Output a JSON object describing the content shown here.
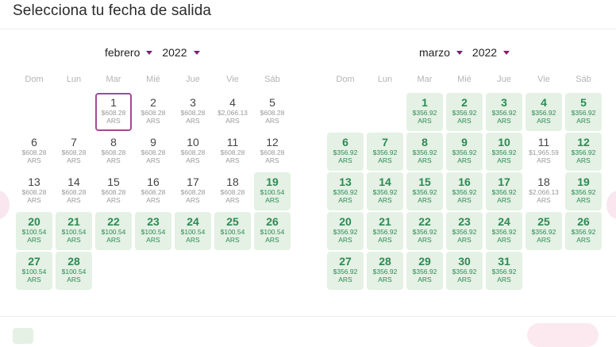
{
  "title": "Selecciona tu fecha de salida",
  "weekdays": [
    "Dom",
    "Lun",
    "Mar",
    "Mié",
    "Jue",
    "Vie",
    "Sáb"
  ],
  "colors": {
    "accent": "#8a1a6b",
    "cheap_bg": "#e4f1e4",
    "cheap_text": "#2c8a54",
    "selected_border": "#a14a95"
  },
  "icons": {
    "prev": "chevron-left-icon",
    "next": "chevron-right-icon",
    "dropdown": "caret-down-icon"
  },
  "months": [
    {
      "month_label": "febrero",
      "year_label": "2022",
      "start_weekday": 2,
      "days": [
        {
          "day": "1",
          "price": "$608.28",
          "currency": "ARS",
          "cheap": false,
          "selected": true
        },
        {
          "day": "2",
          "price": "$608.28",
          "currency": "ARS",
          "cheap": false
        },
        {
          "day": "3",
          "price": "$608.28",
          "currency": "ARS",
          "cheap": false
        },
        {
          "day": "4",
          "price": "$2,066.13",
          "currency": "ARS",
          "cheap": false
        },
        {
          "day": "5",
          "price": "$608.28",
          "currency": "ARS",
          "cheap": false
        },
        {
          "day": "6",
          "price": "$608.28",
          "currency": "ARS",
          "cheap": false
        },
        {
          "day": "7",
          "price": "$608.28",
          "currency": "ARS",
          "cheap": false
        },
        {
          "day": "8",
          "price": "$608.28",
          "currency": "ARS",
          "cheap": false
        },
        {
          "day": "9",
          "price": "$608.28",
          "currency": "ARS",
          "cheap": false
        },
        {
          "day": "10",
          "price": "$608.28",
          "currency": "ARS",
          "cheap": false
        },
        {
          "day": "11",
          "price": "$608.28",
          "currency": "ARS",
          "cheap": false
        },
        {
          "day": "12",
          "price": "$608.28",
          "currency": "ARS",
          "cheap": false
        },
        {
          "day": "13",
          "price": "$608.28",
          "currency": "ARS",
          "cheap": false
        },
        {
          "day": "14",
          "price": "$608.28",
          "currency": "ARS",
          "cheap": false
        },
        {
          "day": "15",
          "price": "$608.28",
          "currency": "ARS",
          "cheap": false
        },
        {
          "day": "16",
          "price": "$608.28",
          "currency": "ARS",
          "cheap": false
        },
        {
          "day": "17",
          "price": "$608.28",
          "currency": "ARS",
          "cheap": false
        },
        {
          "day": "18",
          "price": "$608.28",
          "currency": "ARS",
          "cheap": false
        },
        {
          "day": "19",
          "price": "$100.54",
          "currency": "ARS",
          "cheap": true
        },
        {
          "day": "20",
          "price": "$100.54",
          "currency": "ARS",
          "cheap": true
        },
        {
          "day": "21",
          "price": "$100.54",
          "currency": "ARS",
          "cheap": true
        },
        {
          "day": "22",
          "price": "$100.54",
          "currency": "ARS",
          "cheap": true
        },
        {
          "day": "23",
          "price": "$100.54",
          "currency": "ARS",
          "cheap": true
        },
        {
          "day": "24",
          "price": "$100.54",
          "currency": "ARS",
          "cheap": true
        },
        {
          "day": "25",
          "price": "$100.54",
          "currency": "ARS",
          "cheap": true
        },
        {
          "day": "26",
          "price": "$100.54",
          "currency": "ARS",
          "cheap": true
        },
        {
          "day": "27",
          "price": "$100.54",
          "currency": "ARS",
          "cheap": true
        },
        {
          "day": "28",
          "price": "$100.54",
          "currency": "ARS",
          "cheap": true
        }
      ]
    },
    {
      "month_label": "marzo",
      "year_label": "2022",
      "start_weekday": 2,
      "days": [
        {
          "day": "1",
          "price": "$356.92",
          "currency": "ARS",
          "cheap": true
        },
        {
          "day": "2",
          "price": "$356.92",
          "currency": "ARS",
          "cheap": true
        },
        {
          "day": "3",
          "price": "$356.92",
          "currency": "ARS",
          "cheap": true
        },
        {
          "day": "4",
          "price": "$356.92",
          "currency": "ARS",
          "cheap": true
        },
        {
          "day": "5",
          "price": "$356.92",
          "currency": "ARS",
          "cheap": true
        },
        {
          "day": "6",
          "price": "$356.92",
          "currency": "ARS",
          "cheap": true
        },
        {
          "day": "7",
          "price": "$356.92",
          "currency": "ARS",
          "cheap": true
        },
        {
          "day": "8",
          "price": "$356.92",
          "currency": "ARS",
          "cheap": true
        },
        {
          "day": "9",
          "price": "$356.92",
          "currency": "ARS",
          "cheap": true
        },
        {
          "day": "10",
          "price": "$356.92",
          "currency": "ARS",
          "cheap": true
        },
        {
          "day": "11",
          "price": "$1,965.59",
          "currency": "ARS",
          "cheap": false
        },
        {
          "day": "12",
          "price": "$356.92",
          "currency": "ARS",
          "cheap": true
        },
        {
          "day": "13",
          "price": "$356.92",
          "currency": "ARS",
          "cheap": true
        },
        {
          "day": "14",
          "price": "$356.92",
          "currency": "ARS",
          "cheap": true
        },
        {
          "day": "15",
          "price": "$356.92",
          "currency": "ARS",
          "cheap": true
        },
        {
          "day": "16",
          "price": "$356.92",
          "currency": "ARS",
          "cheap": true
        },
        {
          "day": "17",
          "price": "$356.92",
          "currency": "ARS",
          "cheap": true
        },
        {
          "day": "18",
          "price": "$2,066.13",
          "currency": "ARS",
          "cheap": false
        },
        {
          "day": "19",
          "price": "$356.92",
          "currency": "ARS",
          "cheap": true
        },
        {
          "day": "20",
          "price": "$356.92",
          "currency": "ARS",
          "cheap": true
        },
        {
          "day": "21",
          "price": "$356.92",
          "currency": "ARS",
          "cheap": true
        },
        {
          "day": "22",
          "price": "$356.92",
          "currency": "ARS",
          "cheap": true
        },
        {
          "day": "23",
          "price": "$356.92",
          "currency": "ARS",
          "cheap": true
        },
        {
          "day": "24",
          "price": "$356.92",
          "currency": "ARS",
          "cheap": true
        },
        {
          "day": "25",
          "price": "$356.92",
          "currency": "ARS",
          "cheap": true
        },
        {
          "day": "26",
          "price": "$356.92",
          "currency": "ARS",
          "cheap": true
        },
        {
          "day": "27",
          "price": "$356.92",
          "currency": "ARS",
          "cheap": true
        },
        {
          "day": "28",
          "price": "$356.92",
          "currency": "ARS",
          "cheap": true
        },
        {
          "day": "29",
          "price": "$356.92",
          "currency": "ARS",
          "cheap": true
        },
        {
          "day": "30",
          "price": "$356.92",
          "currency": "ARS",
          "cheap": true
        },
        {
          "day": "31",
          "price": "$356.92",
          "currency": "ARS",
          "cheap": true
        }
      ]
    }
  ]
}
